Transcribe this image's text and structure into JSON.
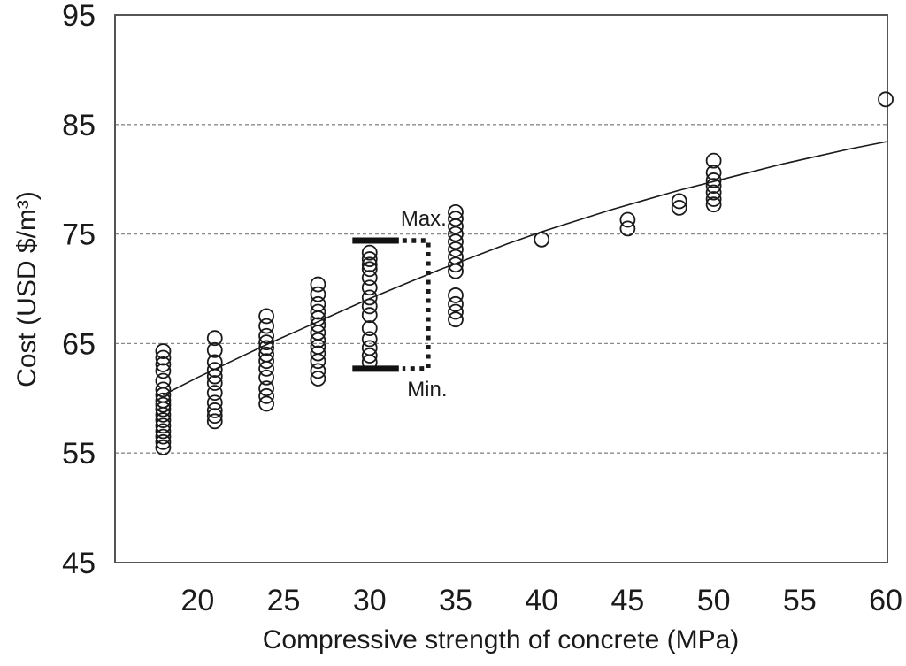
{
  "chart_data": {
    "type": "scatter",
    "title": "",
    "xlabel": "Compressive strength of concrete (MPa)",
    "ylabel": "Cost (USD $/m³)",
    "xlim": [
      15.2,
      60.1
    ],
    "ylim": [
      45,
      95
    ],
    "x_ticks": [
      20,
      25,
      30,
      35,
      40,
      45,
      50,
      55,
      60
    ],
    "y_ticks": [
      45,
      55,
      65,
      75,
      85,
      95
    ],
    "gridlines_y": [
      55,
      65,
      75,
      85
    ],
    "grid_style": "dashed",
    "legend": "none",
    "marker": "open-circle",
    "marker_color": "#1a1a1a",
    "curve_color": "#1a1a1a",
    "grid_color": "#8a8a8a",
    "frame_color": "#555555",
    "clusters": [
      {
        "x": 18,
        "values": [
          64.3,
          63.7,
          63.1,
          62.5,
          61.6,
          60.8,
          60.3,
          59.8,
          59.4,
          59.0,
          58.5,
          58.0,
          57.5,
          57.0,
          56.5,
          56.0,
          55.5
        ]
      },
      {
        "x": 21,
        "values": [
          65.5,
          64.4,
          63.3,
          62.6,
          62.0,
          61.4,
          60.5,
          59.6,
          58.9,
          58.4,
          57.9
        ]
      },
      {
        "x": 24,
        "values": [
          67.5,
          66.6,
          65.7,
          65.1,
          64.6,
          64.0,
          63.4,
          62.7,
          61.9,
          60.9,
          60.2,
          59.5
        ]
      },
      {
        "x": 27,
        "values": [
          70.4,
          69.5,
          68.6,
          67.9,
          67.3,
          66.7,
          66.0,
          65.3,
          64.7,
          64.1,
          63.4,
          62.5,
          61.8
        ]
      },
      {
        "x": 30,
        "values": [
          73.3,
          72.7,
          72.2,
          71.8,
          71.0,
          70.1,
          69.2,
          68.4,
          67.6,
          66.4,
          65.4,
          64.6,
          63.9,
          63.3
        ]
      },
      {
        "x": 35,
        "values": [
          77.0,
          76.4,
          75.7,
          75.0,
          74.3,
          73.6,
          72.9,
          72.2,
          71.6,
          69.4,
          68.6,
          67.9,
          67.2
        ]
      },
      {
        "x": 40,
        "values": [
          74.5
        ]
      },
      {
        "x": 45,
        "values": [
          76.3,
          75.5
        ]
      },
      {
        "x": 48,
        "values": [
          78.0,
          77.4
        ]
      },
      {
        "x": 50,
        "values": [
          81.7,
          80.6,
          79.9,
          79.4,
          78.8,
          78.2,
          77.7
        ]
      },
      {
        "x": 60,
        "values": [
          87.3
        ]
      }
    ],
    "trend_curve": {
      "x": [
        18,
        20,
        22,
        24,
        26,
        28,
        30,
        32,
        34,
        36,
        38,
        40,
        42,
        44,
        46,
        48,
        50,
        52,
        54,
        56,
        58,
        60.1
      ],
      "y": [
        60.3,
        61.9,
        63.4,
        64.9,
        66.3,
        67.7,
        69.1,
        70.4,
        71.7,
        72.9,
        74.1,
        75.2,
        76.2,
        77.2,
        78.1,
        79.0,
        79.8,
        80.6,
        81.4,
        82.1,
        82.8,
        83.45
      ]
    },
    "annotation": {
      "max_label": "Max.",
      "min_label": "Min.",
      "max_value": 74.4,
      "min_value": 62.7,
      "bar_x_start": 29.0,
      "bar_x_end": 31.7,
      "bracket_x": 33.4
    }
  }
}
